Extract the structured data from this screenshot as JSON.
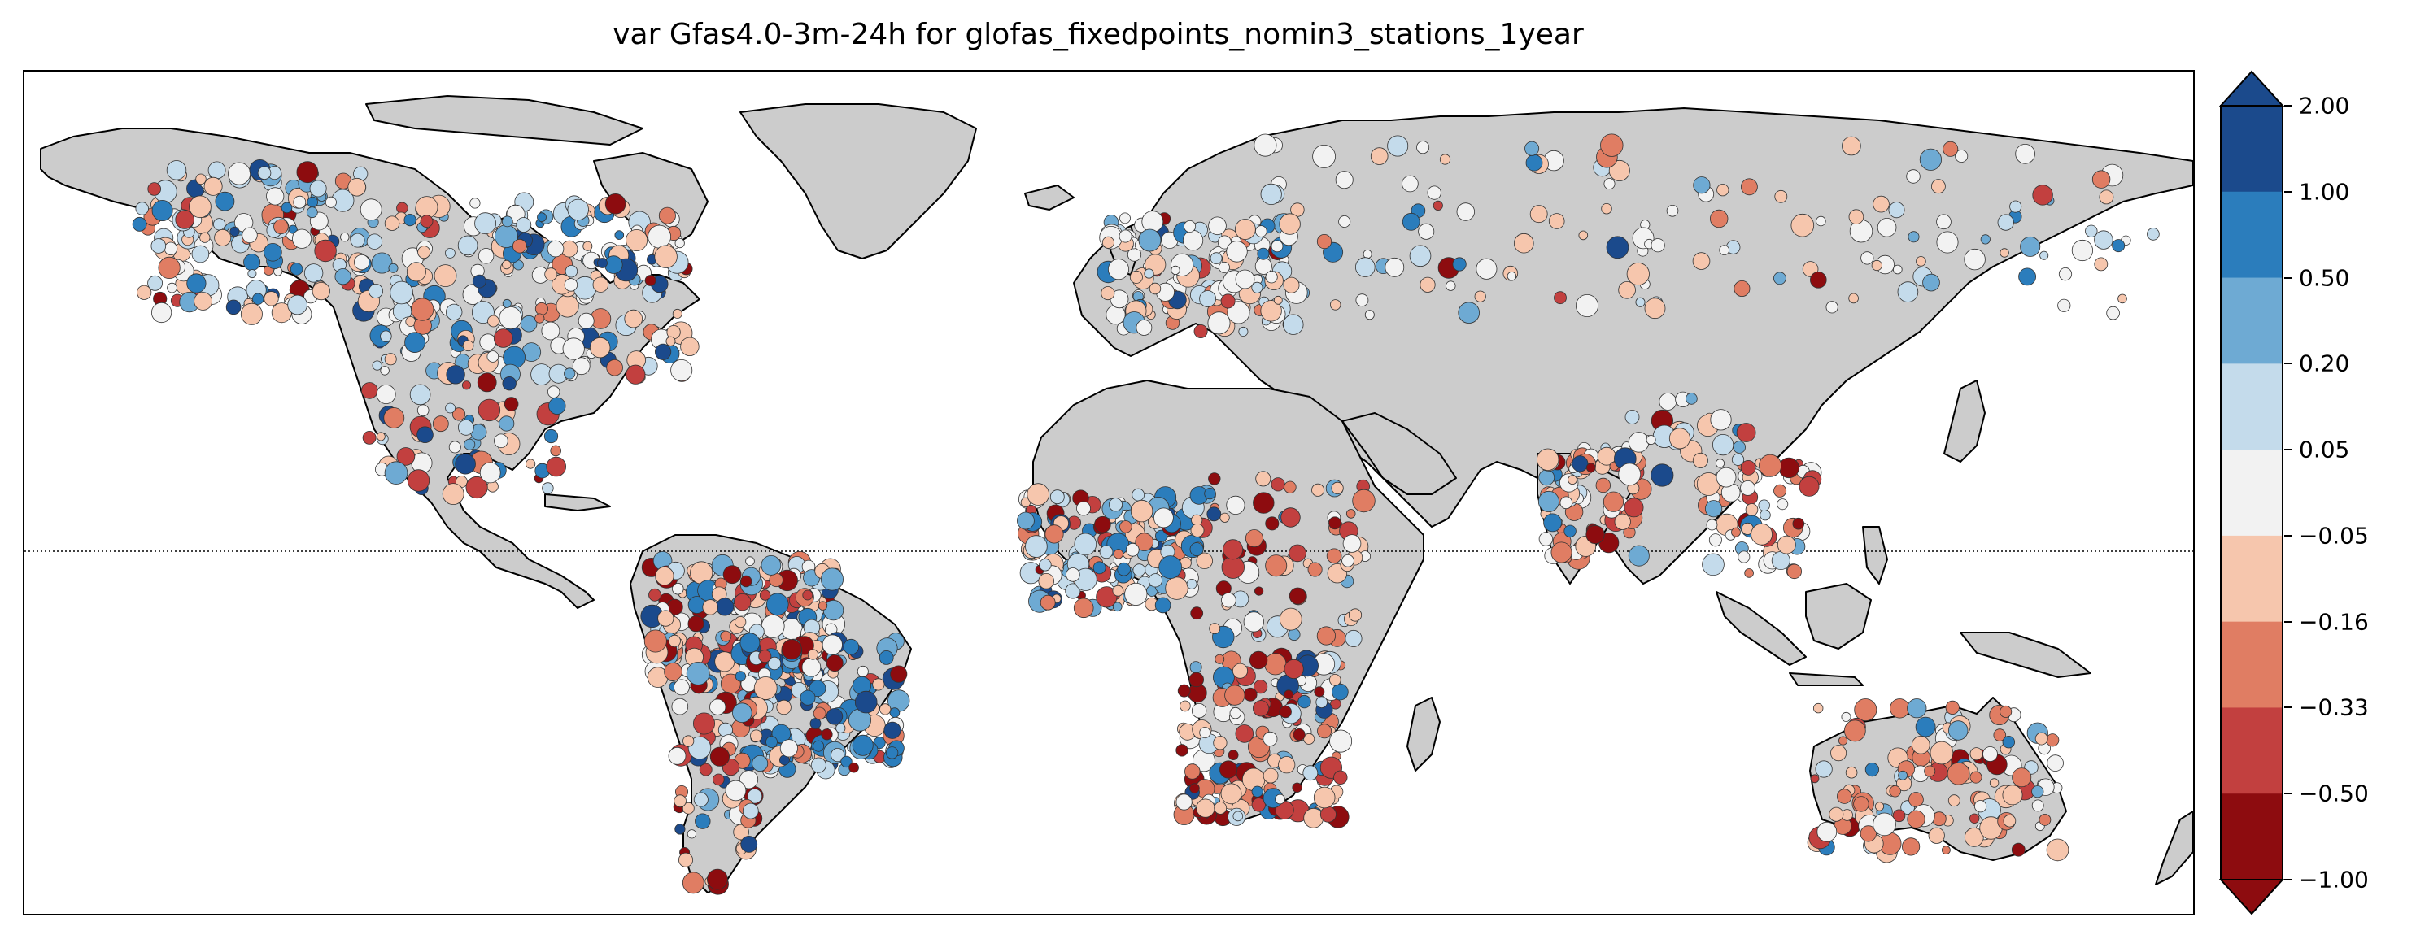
{
  "title": "var Gfas4.0-3m-24h for glofas_fixedpoints_nomin3_stations_1year",
  "colorbar": {
    "ticks": [
      "2.00",
      "1.00",
      "0.50",
      "0.20",
      "0.05",
      "−0.05",
      "−0.16",
      "−0.33",
      "−0.50",
      "−1.00"
    ],
    "colors": [
      "#1b4a8c",
      "#2b7dbc",
      "#6eaad3",
      "#c4dbeb",
      "#f2f2f2",
      "#f6c6ad",
      "#e07d63",
      "#c2403f",
      "#8d0c0f"
    ],
    "extend": "both"
  },
  "map": {
    "projection": "equirectangular",
    "land_color": "#cccccc",
    "coast_color": "#000000",
    "equator_line": "dotted",
    "marker": "circle-with-dark-edge",
    "regions_with_markers": [
      "North America",
      "Central America",
      "South America",
      "Europe",
      "Africa",
      "South Asia",
      "Southeast Asia",
      "Russia/Siberia",
      "China",
      "Australia"
    ]
  }
}
